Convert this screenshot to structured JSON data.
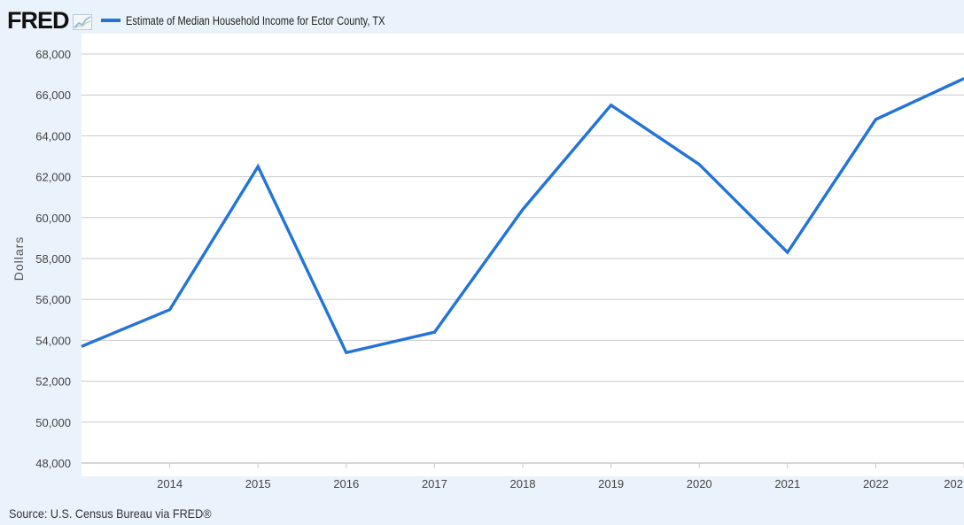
{
  "header": {
    "logo_text": "FRED",
    "logo_icon": "fred-sparkline-icon"
  },
  "source_text": "Source: U.S. Census Bureau via FRED®",
  "colors": {
    "series": "#2274d8",
    "background": "#eaf3fb",
    "plot_background": "#ffffff",
    "gridline": "#c9c9c9"
  },
  "chart_data": {
    "type": "line",
    "title": "",
    "xlabel": "",
    "ylabel": "Dollars",
    "x": [
      2013,
      2014,
      2015,
      2016,
      2017,
      2018,
      2019,
      2020,
      2021,
      2022,
      2023
    ],
    "series": [
      {
        "name": "Estimate of Median Household Income for Ector County, TX",
        "values": [
          53700,
          55500,
          62500,
          53400,
          54400,
          60400,
          65500,
          62600,
          58300,
          64800,
          66800
        ]
      }
    ],
    "ylim": [
      48000,
      68000
    ],
    "y_ticks": [
      "68,000",
      "66,000",
      "64,000",
      "62,000",
      "60,000",
      "58,000",
      "56,000",
      "54,000",
      "52,000",
      "50,000",
      "48,000"
    ],
    "x_tick_labels": [
      "2014",
      "2015",
      "2016",
      "2017",
      "2018",
      "2019",
      "2020",
      "2021",
      "2022",
      "202"
    ],
    "grid": true,
    "legend_position": "top-left"
  }
}
